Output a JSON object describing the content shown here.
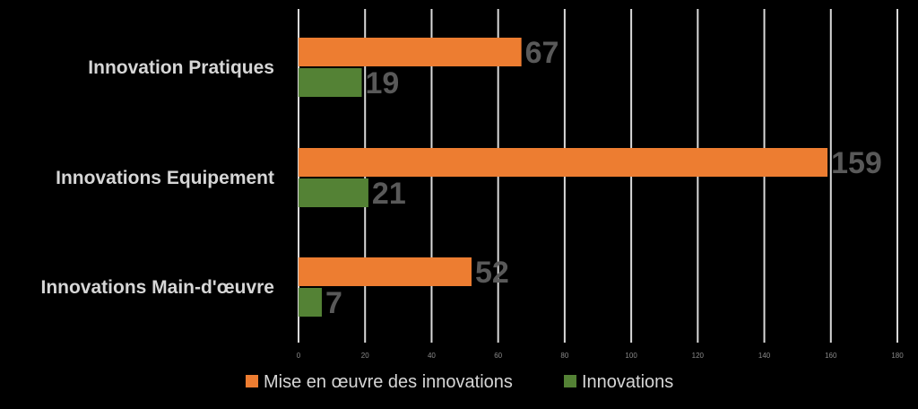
{
  "chart_data": {
    "type": "bar",
    "orientation": "horizontal",
    "categories": [
      "Innovation Pratiques",
      "Innovations Equipement",
      "Innovations Main-d'œuvre"
    ],
    "series": [
      {
        "name": "Mise en œuvre des innovations",
        "color": "#ED7D31",
        "values": [
          67,
          159,
          52
        ]
      },
      {
        "name": "Innovations",
        "color": "#548235",
        "values": [
          19,
          21,
          7
        ]
      }
    ],
    "xlim": [
      0,
      180
    ],
    "x_ticks": [
      0,
      20,
      40,
      60,
      80,
      100,
      120,
      140,
      160,
      180
    ],
    "grid": true,
    "legend_position": "bottom",
    "data_labels": true
  }
}
